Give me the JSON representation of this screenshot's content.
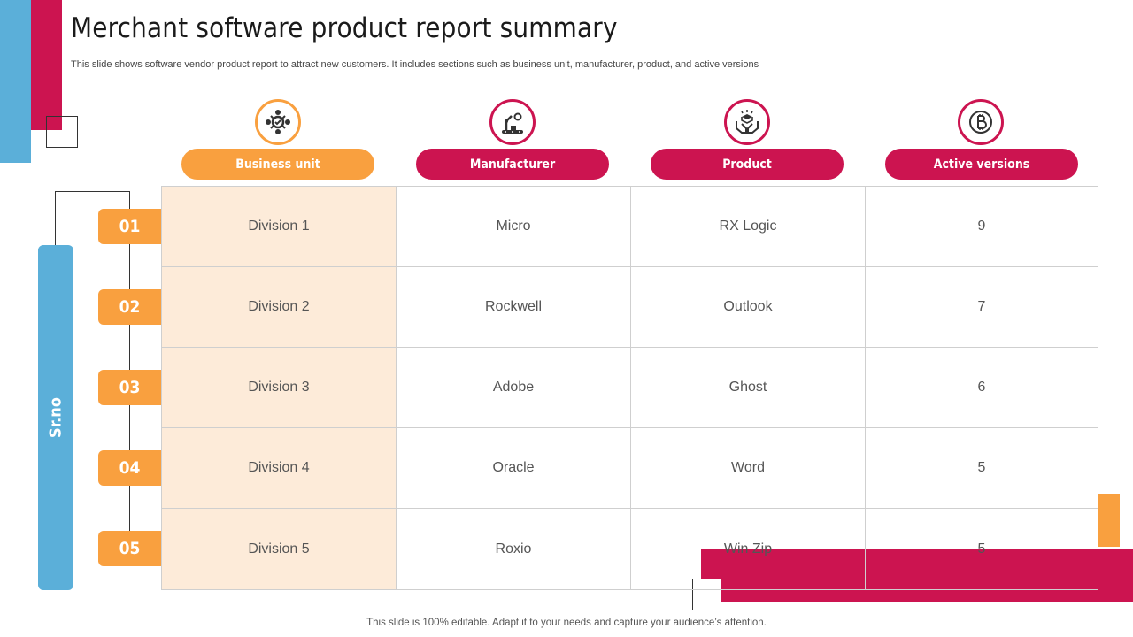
{
  "title": "Merchant software product report summary",
  "subtitle": "This slide shows software vendor product report to attract new customers. It includes sections such as  business unit, manufacturer, product, and active versions",
  "footer": "This slide is 100% editable. Adapt it to your needs and capture your audience’s attention.",
  "side_label": "Sr.no",
  "colors": {
    "orange": "#f9a03f",
    "crimson": "#cc1450",
    "blue": "#5bafd9",
    "light_orange": "#fdebd9"
  },
  "headers": [
    {
      "label": "Business unit",
      "icon": "team-gear-icon",
      "color": "#f9a03f"
    },
    {
      "label": "Manufacturer",
      "icon": "factory-robot-arm-icon",
      "color": "#cc1450"
    },
    {
      "label": "Product",
      "icon": "hands-box-icon",
      "color": "#cc1450"
    },
    {
      "label": "Active versions",
      "icon": "bitcoin-icon",
      "color": "#cc1450"
    }
  ],
  "rows": [
    {
      "num": "01",
      "cells": [
        "Division 1",
        "Micro",
        "RX Logic",
        "9"
      ]
    },
    {
      "num": "02",
      "cells": [
        "Division 2",
        "Rockwell",
        "Outlook",
        "7"
      ]
    },
    {
      "num": "03",
      "cells": [
        "Division 3",
        "Adobe",
        "Ghost",
        "6"
      ]
    },
    {
      "num": "04",
      "cells": [
        "Division 4",
        "Oracle",
        "Word",
        "5"
      ]
    },
    {
      "num": "05",
      "cells": [
        "Division 5",
        "Roxio",
        "Win Zip",
        "5"
      ]
    }
  ]
}
